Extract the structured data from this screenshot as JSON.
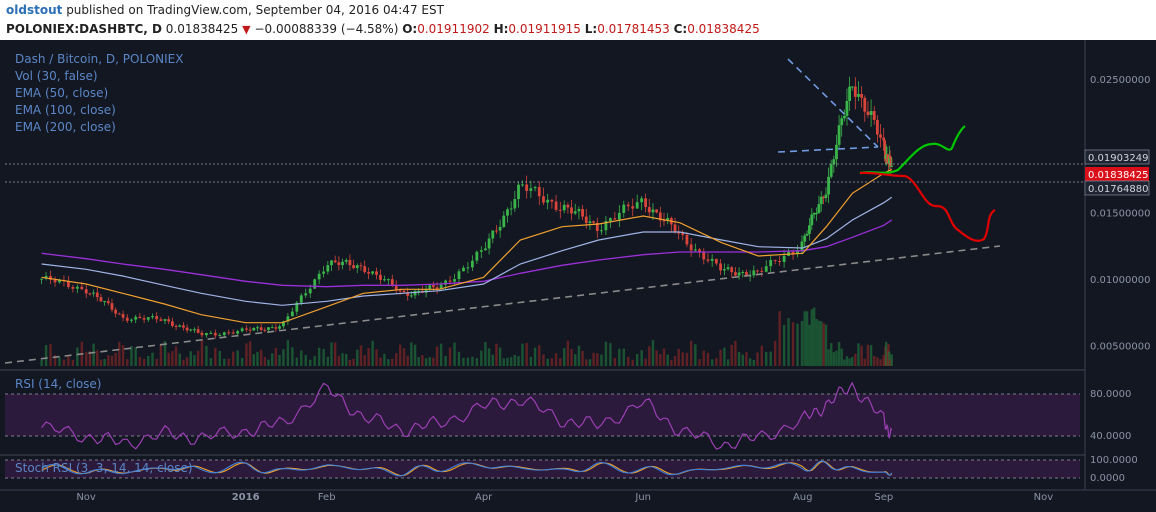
{
  "header": {
    "author": "oldstout",
    "published_text": "published on TradingView.com, September 04, 2016 04:47 EST",
    "symbol": "POLONIEX:DASHBTC, D",
    "last": "0.01838425",
    "change": "−0.00088339 (−4.58%)",
    "o_label": "O:",
    "o_value": "0.01911902",
    "h_label": "H:",
    "h_value": "0.01911915",
    "l_label": "L:",
    "l_value": "0.01781453",
    "c_label": "C:",
    "c_value": "0.01838425"
  },
  "legend": {
    "title": "Dash / Bitcoin, D, POLONIEX",
    "vol": "Vol (30, false)",
    "ema50": "EMA (50, close)",
    "ema100": "EMA (100, close)",
    "ema200": "EMA (200, close)",
    "rsi": "RSI (14, close)",
    "stoch": "Stoch RSI (3, 3, 14, 14, close)"
  },
  "colors": {
    "background": "#131722",
    "up": "#3ab54a",
    "down": "#d9453a",
    "ema50": "#f0a02f",
    "ema100": "#9fb4e6",
    "ema200": "#9b30d9",
    "rsi": "#9b3fb4",
    "bull_path": "#00c800",
    "bear_path": "#e00000",
    "trendline": "#8a8a8a",
    "wedge": "#6f9be0"
  },
  "price_tags": {
    "upper": "0.01903249",
    "last": "0.01838425",
    "lower": "0.01764880"
  },
  "chart_data": [
    {
      "type": "line",
      "title": "Dash / Bitcoin, D, POLONIEX",
      "x_ticks": [
        "Nov",
        "2016",
        "Feb",
        "Apr",
        "Jun",
        "Aug",
        "Sep",
        "Nov"
      ],
      "y_ticks": [
        "0.02500000",
        "0.01500000",
        "0.01000000",
        "0.00500000"
      ],
      "ylim": [
        0.004,
        0.028
      ],
      "x": [
        "2015-10-15",
        "2015-11-01",
        "2015-11-15",
        "2015-12-01",
        "2015-12-15",
        "2016-01-01",
        "2016-01-15",
        "2016-02-01",
        "2016-02-15",
        "2016-03-01",
        "2016-03-15",
        "2016-04-01",
        "2016-04-15",
        "2016-05-01",
        "2016-05-15",
        "2016-06-01",
        "2016-06-15",
        "2016-07-01",
        "2016-07-15",
        "2016-08-01",
        "2016-08-10",
        "2016-08-20",
        "2016-09-01",
        "2016-09-04"
      ],
      "series": [
        {
          "name": "DASHBTC close",
          "values": [
            0.0101,
            0.0093,
            0.0072,
            0.007,
            0.0059,
            0.0062,
            0.0066,
            0.0113,
            0.011,
            0.009,
            0.0094,
            0.0122,
            0.017,
            0.0155,
            0.014,
            0.016,
            0.0133,
            0.0107,
            0.0105,
            0.0128,
            0.017,
            0.025,
            0.02,
            0.0184
          ]
        },
        {
          "name": "EMA (50, close)",
          "values": [
            0.0102,
            0.0097,
            0.009,
            0.0082,
            0.0074,
            0.0068,
            0.0068,
            0.008,
            0.009,
            0.0093,
            0.0093,
            0.0102,
            0.013,
            0.014,
            0.0142,
            0.0148,
            0.0143,
            0.0128,
            0.0118,
            0.012,
            0.014,
            0.0165,
            0.018,
            0.0183
          ]
        },
        {
          "name": "EMA (100, close)",
          "values": [
            0.0112,
            0.0108,
            0.0103,
            0.0096,
            0.009,
            0.0084,
            0.0081,
            0.0084,
            0.0088,
            0.009,
            0.0092,
            0.0097,
            0.0112,
            0.0122,
            0.013,
            0.0136,
            0.0136,
            0.013,
            0.0125,
            0.0124,
            0.0131,
            0.0145,
            0.0158,
            0.0162
          ]
        },
        {
          "name": "EMA (200, close)",
          "values": [
            0.012,
            0.0116,
            0.0112,
            0.0108,
            0.0104,
            0.0099,
            0.0096,
            0.0095,
            0.0096,
            0.0096,
            0.0097,
            0.0099,
            0.0105,
            0.0111,
            0.0115,
            0.0119,
            0.0121,
            0.0121,
            0.0121,
            0.0122,
            0.0125,
            0.0132,
            0.0141,
            0.0145
          ]
        }
      ]
    },
    {
      "type": "line",
      "title": "RSI (14, close)",
      "y_ticks": [
        "80.0000",
        "40.0000"
      ],
      "ylim": [
        15,
        90
      ],
      "series": [
        {
          "name": "RSI (14, close)",
          "values": [
            48,
            40,
            33,
            42,
            38,
            45,
            52,
            85,
            58,
            46,
            52,
            68,
            75,
            55,
            50,
            72,
            45,
            32,
            38,
            55,
            70,
            88,
            55,
            40
          ]
        }
      ]
    },
    {
      "type": "line",
      "title": "Stoch RSI (3, 3, 14, 14, close)",
      "y_ticks": [
        "100.0000",
        "0.0000"
      ],
      "ylim": [
        0,
        100
      ],
      "series": [
        {
          "name": "K",
          "values": [
            60,
            30,
            10,
            70,
            40,
            80,
            20,
            90,
            50,
            10,
            70,
            90,
            60,
            30,
            80,
            40,
            10,
            60,
            90,
            70,
            95,
            50,
            5,
            0
          ]
        },
        {
          "name": "D",
          "values": [
            55,
            35,
            15,
            60,
            45,
            70,
            25,
            85,
            55,
            15,
            65,
            85,
            65,
            35,
            75,
            45,
            15,
            55,
            85,
            75,
            90,
            55,
            10,
            2
          ]
        }
      ]
    }
  ]
}
